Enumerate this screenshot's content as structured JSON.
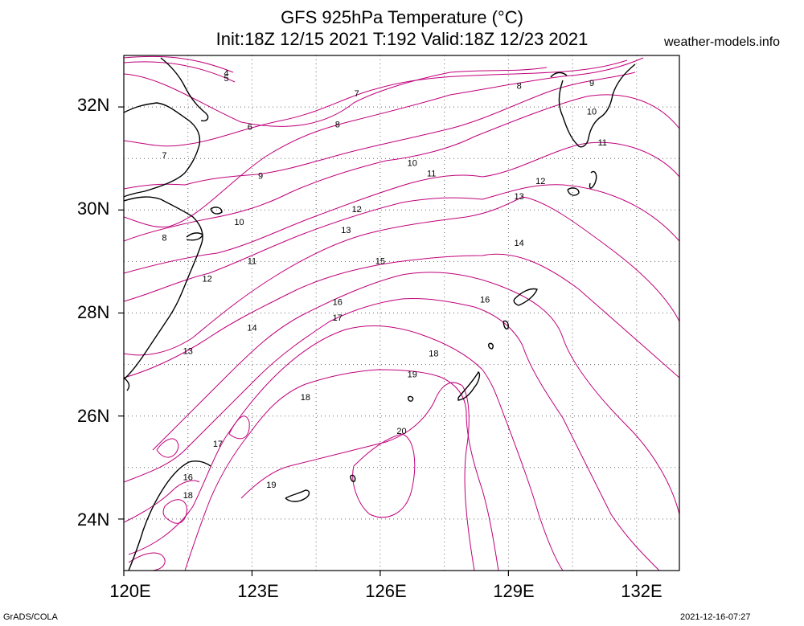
{
  "title": {
    "line1": "GFS 925hPa Temperature (°C)",
    "line2": "Init:18Z 12/15 2021 T:192 Valid:18Z 12/23 2021"
  },
  "site": "weather-models.info",
  "footer": {
    "left": "GrADS/COLA",
    "right": "2021-12-16-07:27"
  },
  "axes": {
    "lat_labels": [
      "32N",
      "30N",
      "28N",
      "26N",
      "24N"
    ],
    "lon_labels": [
      "120E",
      "123E",
      "126E",
      "129E",
      "132E"
    ],
    "lon_range": [
      120,
      133
    ],
    "lat_range": [
      23,
      33
    ],
    "grid": "dotted"
  },
  "contour_labels": [
    {
      "text": "4",
      "lon": 122.4,
      "lat": 32.65
    },
    {
      "text": "5",
      "lon": 122.4,
      "lat": 32.55
    },
    {
      "text": "6",
      "lon": 122.95,
      "lat": 31.6
    },
    {
      "text": "7",
      "lon": 125.45,
      "lat": 32.25
    },
    {
      "text": "7",
      "lon": 120.95,
      "lat": 31.05
    },
    {
      "text": "8",
      "lon": 125.0,
      "lat": 31.65
    },
    {
      "text": "8",
      "lon": 129.25,
      "lat": 32.4
    },
    {
      "text": "8",
      "lon": 120.95,
      "lat": 29.45
    },
    {
      "text": "9",
      "lon": 123.2,
      "lat": 30.65
    },
    {
      "text": "9",
      "lon": 130.95,
      "lat": 32.45
    },
    {
      "text": "10",
      "lon": 126.75,
      "lat": 30.9
    },
    {
      "text": "10",
      "lon": 130.95,
      "lat": 31.9
    },
    {
      "text": "10",
      "lon": 122.7,
      "lat": 29.75
    },
    {
      "text": "11",
      "lon": 127.2,
      "lat": 30.7
    },
    {
      "text": "11",
      "lon": 131.2,
      "lat": 31.3
    },
    {
      "text": "11",
      "lon": 123.0,
      "lat": 29.0
    },
    {
      "text": "12",
      "lon": 129.75,
      "lat": 30.55
    },
    {
      "text": "12",
      "lon": 125.45,
      "lat": 30.0
    },
    {
      "text": "12",
      "lon": 121.95,
      "lat": 28.65
    },
    {
      "text": "13",
      "lon": 129.25,
      "lat": 30.25
    },
    {
      "text": "13",
      "lon": 125.2,
      "lat": 29.6
    },
    {
      "text": "13",
      "lon": 121.5,
      "lat": 27.25
    },
    {
      "text": "14",
      "lon": 129.25,
      "lat": 29.35
    },
    {
      "text": "14",
      "lon": 123.0,
      "lat": 27.7
    },
    {
      "text": "15",
      "lon": 126.0,
      "lat": 29.0
    },
    {
      "text": "16",
      "lon": 128.45,
      "lat": 28.25
    },
    {
      "text": "16",
      "lon": 125.0,
      "lat": 28.2
    },
    {
      "text": "16",
      "lon": 121.5,
      "lat": 24.8
    },
    {
      "text": "17",
      "lon": 125.0,
      "lat": 27.9
    },
    {
      "text": "17",
      "lon": 122.2,
      "lat": 25.45
    },
    {
      "text": "18",
      "lon": 127.25,
      "lat": 27.2
    },
    {
      "text": "18",
      "lon": 124.25,
      "lat": 26.35
    },
    {
      "text": "18",
      "lon": 121.5,
      "lat": 24.45
    },
    {
      "text": "19",
      "lon": 126.75,
      "lat": 26.8
    },
    {
      "text": "19",
      "lon": 123.45,
      "lat": 24.65
    },
    {
      "text": "20",
      "lon": 126.5,
      "lat": 25.7
    }
  ]
}
